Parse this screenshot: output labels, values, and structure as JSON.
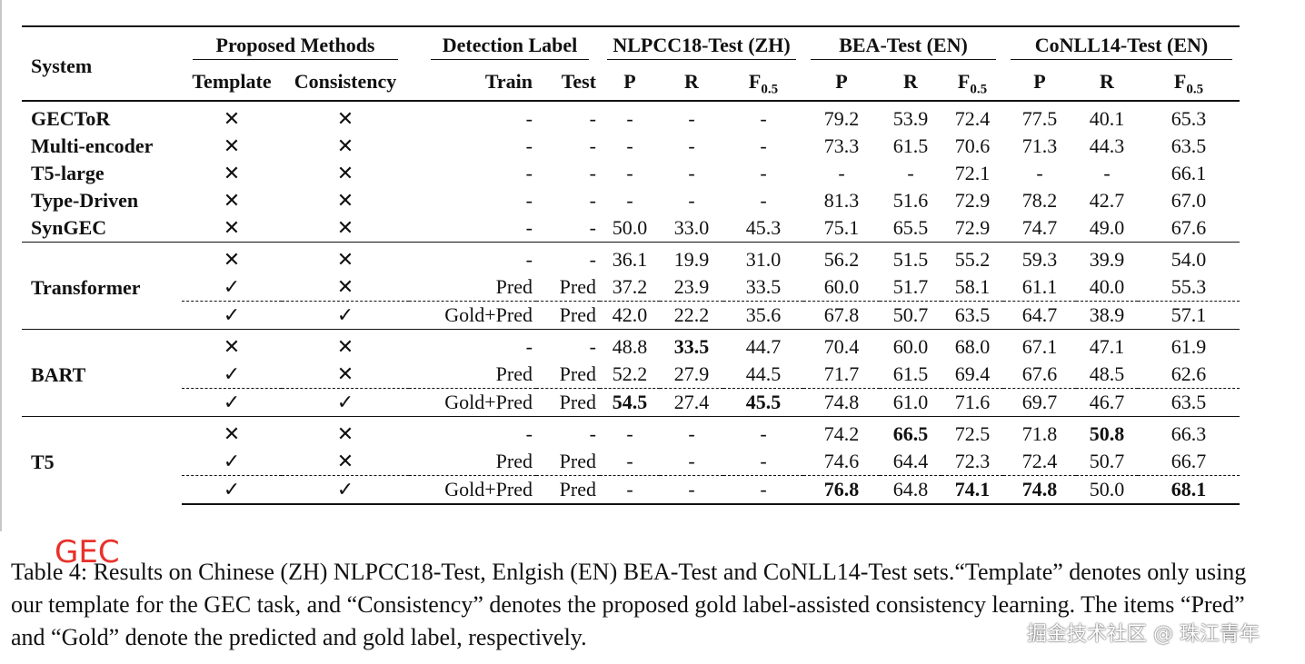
{
  "table": {
    "headers": {
      "system": "System",
      "proposed_methods": "Proposed Methods",
      "template": "Template",
      "consistency": "Consistency",
      "detection_label": "Detection Label",
      "train": "Train",
      "test": "Test",
      "nlpcc": "NLPCC18-Test (ZH)",
      "bea": "BEA-Test (EN)",
      "conll": "CoNLL14-Test (EN)",
      "p": "P",
      "r": "R",
      "f": "F",
      "f_sub": "0.5"
    },
    "symbols": {
      "cross": "✕",
      "check": "✓"
    },
    "baselines": [
      {
        "system": "GECToR",
        "template": "✕",
        "consistency": "✕",
        "train": "-",
        "test": "-",
        "zh_p": "-",
        "zh_r": "-",
        "zh_f": "-",
        "bea_p": "79.2",
        "bea_r": "53.9",
        "bea_f": "72.4",
        "conll_p": "77.5",
        "conll_r": "40.1",
        "conll_f": "65.3"
      },
      {
        "system": "Multi-encoder",
        "template": "✕",
        "consistency": "✕",
        "train": "-",
        "test": "-",
        "zh_p": "-",
        "zh_r": "-",
        "zh_f": "-",
        "bea_p": "73.3",
        "bea_r": "61.5",
        "bea_f": "70.6",
        "conll_p": "71.3",
        "conll_r": "44.3",
        "conll_f": "63.5"
      },
      {
        "system": "T5-large",
        "template": "✕",
        "consistency": "✕",
        "train": "-",
        "test": "-",
        "zh_p": "-",
        "zh_r": "-",
        "zh_f": "-",
        "bea_p": "-",
        "bea_r": "-",
        "bea_f": "72.1",
        "conll_p": "-",
        "conll_r": "-",
        "conll_f": "66.1"
      },
      {
        "system": "Type-Driven",
        "template": "✕",
        "consistency": "✕",
        "train": "-",
        "test": "-",
        "zh_p": "-",
        "zh_r": "-",
        "zh_f": "-",
        "bea_p": "81.3",
        "bea_r": "51.6",
        "bea_f": "72.9",
        "conll_p": "78.2",
        "conll_r": "42.7",
        "conll_f": "67.0"
      },
      {
        "system": "SynGEC",
        "template": "✕",
        "consistency": "✕",
        "train": "-",
        "test": "-",
        "zh_p": "50.0",
        "zh_r": "33.0",
        "zh_f": "45.3",
        "bea_p": "75.1",
        "bea_r": "65.5",
        "bea_f": "72.9",
        "conll_p": "74.7",
        "conll_r": "49.0",
        "conll_f": "67.6"
      }
    ],
    "groups": [
      {
        "system": "Transformer",
        "rows": [
          {
            "template": "✕",
            "consistency": "✕",
            "train": "-",
            "test": "-",
            "zh_p": "36.1",
            "zh_r": "19.9",
            "zh_f": "31.0",
            "bea_p": "56.2",
            "bea_r": "51.5",
            "bea_f": "55.2",
            "conll_p": "59.3",
            "conll_r": "39.9",
            "conll_f": "54.0"
          },
          {
            "template": "✓",
            "consistency": "✕",
            "train": "Pred",
            "test": "Pred",
            "zh_p": "37.2",
            "zh_r": "23.9",
            "zh_f": "33.5",
            "bea_p": "60.0",
            "bea_r": "51.7",
            "bea_f": "58.1",
            "conll_p": "61.1",
            "conll_r": "40.0",
            "conll_f": "55.3"
          },
          {
            "template": "✓",
            "consistency": "✓",
            "train": "Gold+Pred",
            "test": "Pred",
            "zh_p": "42.0",
            "zh_r": "22.2",
            "zh_f": "35.6",
            "bea_p": "67.8",
            "bea_r": "50.7",
            "bea_f": "63.5",
            "conll_p": "64.7",
            "conll_r": "38.9",
            "conll_f": "57.1"
          }
        ]
      },
      {
        "system": "BART",
        "rows": [
          {
            "template": "✕",
            "consistency": "✕",
            "train": "-",
            "test": "-",
            "zh_p": "48.8",
            "zh_r": "33.5",
            "zh_f": "44.7",
            "bea_p": "70.4",
            "bea_r": "60.0",
            "bea_f": "68.0",
            "conll_p": "67.1",
            "conll_r": "47.1",
            "conll_f": "61.9"
          },
          {
            "template": "✓",
            "consistency": "✕",
            "train": "Pred",
            "test": "Pred",
            "zh_p": "52.2",
            "zh_r": "27.9",
            "zh_f": "44.5",
            "bea_p": "71.7",
            "bea_r": "61.5",
            "bea_f": "69.4",
            "conll_p": "67.6",
            "conll_r": "48.5",
            "conll_f": "62.6"
          },
          {
            "template": "✓",
            "consistency": "✓",
            "train": "Gold+Pred",
            "test": "Pred",
            "zh_p": "54.5",
            "zh_r": "27.4",
            "zh_f": "45.5",
            "bea_p": "74.8",
            "bea_r": "61.0",
            "bea_f": "71.6",
            "conll_p": "69.7",
            "conll_r": "46.7",
            "conll_f": "63.5"
          }
        ]
      },
      {
        "system": "T5",
        "rows": [
          {
            "template": "✕",
            "consistency": "✕",
            "train": "-",
            "test": "-",
            "zh_p": "-",
            "zh_r": "-",
            "zh_f": "-",
            "bea_p": "74.2",
            "bea_r": "66.5",
            "bea_f": "72.5",
            "conll_p": "71.8",
            "conll_r": "50.8",
            "conll_f": "66.3"
          },
          {
            "template": "✓",
            "consistency": "✕",
            "train": "Pred",
            "test": "Pred",
            "zh_p": "-",
            "zh_r": "-",
            "zh_f": "-",
            "bea_p": "74.6",
            "bea_r": "64.4",
            "bea_f": "72.3",
            "conll_p": "72.4",
            "conll_r": "50.7",
            "conll_f": "66.7"
          },
          {
            "template": "✓",
            "consistency": "✓",
            "train": "Gold+Pred",
            "test": "Pred",
            "zh_p": "-",
            "zh_r": "-",
            "zh_f": "-",
            "bea_p": "76.8",
            "bea_r": "64.8",
            "bea_f": "74.1",
            "conll_p": "74.8",
            "conll_r": "50.0",
            "conll_f": "68.1"
          }
        ]
      }
    ]
  },
  "overlay": {
    "mark": "GEC"
  },
  "caption": "Table 4: Results on Chinese (ZH) NLPCC18-Test, Enlgish (EN) BEA-Test and CoNLL14-Test sets.“Template” denotes only using our template for the GEC task, and “Consistency” denotes the proposed gold label-assisted consistency learning. The items “Pred” and “Gold” denote the predicted and gold label, respectively.",
  "watermark": "掘金技术社区 @ 珠江青年"
}
